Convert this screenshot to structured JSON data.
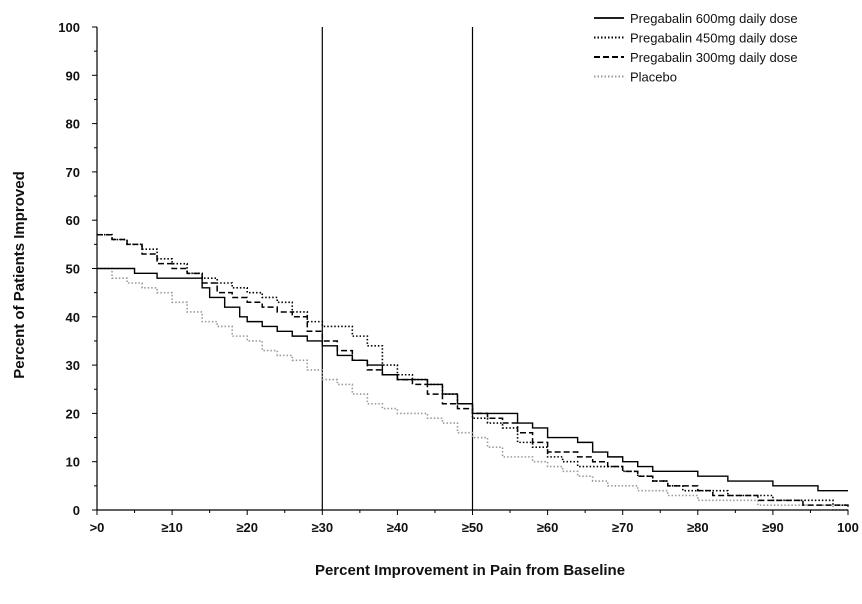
{
  "chart_data": {
    "type": "line",
    "title": "",
    "xlabel": "Percent Improvement in Pain from Baseline",
    "ylabel": "Percent of Patients Improved",
    "x_tick_labels": [
      ">0",
      "≥10",
      "≥20",
      "≥30",
      "≥40",
      "≥50",
      "≥60",
      "≥70",
      "≥80",
      "≥90",
      "100"
    ],
    "x_tick_values": [
      0,
      10,
      20,
      30,
      40,
      50,
      60,
      70,
      80,
      90,
      100
    ],
    "y_tick_labels": [
      "0",
      "10",
      "20",
      "30",
      "40",
      "50",
      "60",
      "70",
      "80",
      "90",
      "100"
    ],
    "y_tick_values": [
      0,
      10,
      20,
      30,
      40,
      50,
      60,
      70,
      80,
      90,
      100
    ],
    "xlim": [
      0,
      100
    ],
    "ylim": [
      0,
      100
    ],
    "grid": false,
    "reference_lines_x": [
      30,
      50
    ],
    "legend_position": "top-right",
    "series": [
      {
        "name": "Pregabalin 600mg daily dose",
        "line_style": "solid",
        "color": "#000000",
        "x": [
          0,
          2,
          5,
          8,
          10,
          12,
          14,
          15,
          17,
          19,
          20,
          22,
          24,
          26,
          28,
          30,
          32,
          34,
          36,
          38,
          40,
          42,
          44,
          46,
          48,
          50,
          52,
          54,
          56,
          58,
          60,
          62,
          64,
          66,
          68,
          70,
          72,
          74,
          76,
          78,
          80,
          82,
          84,
          86,
          88,
          90,
          92,
          94,
          96,
          98,
          100
        ],
        "y": [
          50,
          50,
          49,
          48,
          48,
          48,
          46,
          44,
          42,
          40,
          39,
          38,
          37,
          36,
          35,
          34,
          32,
          31,
          30,
          28,
          27,
          27,
          26,
          24,
          22,
          20,
          20,
          20,
          18,
          17,
          15,
          15,
          14,
          12,
          11,
          10,
          9,
          8,
          8,
          8,
          7,
          7,
          6,
          6,
          6,
          5,
          5,
          5,
          4,
          4,
          4
        ]
      },
      {
        "name": "Pregabalin 450mg daily dose",
        "line_style": "dotted",
        "color": "#000000",
        "x": [
          0,
          2,
          4,
          6,
          8,
          10,
          12,
          14,
          16,
          18,
          20,
          22,
          24,
          26,
          28,
          30,
          32,
          34,
          36,
          38,
          40,
          42,
          44,
          46,
          48,
          50,
          52,
          54,
          56,
          58,
          60,
          62,
          64,
          66,
          68,
          70,
          72,
          74,
          76,
          78,
          80,
          82,
          84,
          86,
          88,
          90,
          92,
          94,
          96,
          98,
          100
        ],
        "y": [
          57,
          56,
          55,
          54,
          52,
          51,
          49,
          48,
          47,
          46,
          45,
          44,
          43,
          41,
          39,
          38,
          38,
          36,
          34,
          30,
          28,
          27,
          26,
          24,
          22,
          19,
          18,
          17,
          14,
          13,
          11,
          10,
          9,
          9,
          9,
          8,
          7,
          6,
          5,
          4,
          4,
          4,
          3,
          3,
          3,
          2,
          2,
          2,
          2,
          1,
          1
        ]
      },
      {
        "name": "Pregabalin 300mg daily dose",
        "line_style": "dashed",
        "color": "#000000",
        "x": [
          0,
          2,
          4,
          6,
          8,
          10,
          12,
          14,
          16,
          18,
          20,
          22,
          24,
          26,
          28,
          30,
          32,
          34,
          36,
          38,
          40,
          42,
          44,
          46,
          48,
          50,
          52,
          54,
          56,
          58,
          60,
          62,
          64,
          66,
          68,
          70,
          72,
          74,
          76,
          78,
          80,
          82,
          84,
          86,
          88,
          90,
          92,
          94,
          96,
          98,
          100
        ],
        "y": [
          57,
          56,
          55,
          53,
          51,
          50,
          49,
          47,
          45,
          44,
          43,
          42,
          41,
          40,
          37,
          35,
          33,
          31,
          29,
          28,
          27,
          26,
          24,
          22,
          21,
          20,
          19,
          18,
          16,
          14,
          12,
          12,
          11,
          10,
          9,
          8,
          7,
          6,
          5,
          5,
          4,
          3,
          3,
          3,
          2,
          2,
          2,
          1,
          1,
          1,
          0
        ]
      },
      {
        "name": "Placebo",
        "line_style": "dotted-gray",
        "color": "#9a9a9a",
        "x": [
          0,
          2,
          4,
          6,
          8,
          10,
          12,
          14,
          16,
          18,
          20,
          22,
          24,
          26,
          28,
          30,
          32,
          34,
          36,
          38,
          40,
          42,
          44,
          46,
          48,
          50,
          52,
          54,
          56,
          58,
          60,
          62,
          64,
          66,
          68,
          70,
          72,
          74,
          76,
          78,
          80,
          82,
          84,
          86,
          88,
          90,
          92,
          94,
          96,
          98,
          100
        ],
        "y": [
          50,
          48,
          47,
          46,
          45,
          43,
          41,
          39,
          38,
          36,
          35,
          33,
          32,
          31,
          29,
          27,
          26,
          24,
          22,
          21,
          20,
          20,
          19,
          18,
          16,
          15,
          13,
          11,
          11,
          10,
          9,
          8,
          7,
          6,
          5,
          5,
          4,
          4,
          3,
          3,
          2,
          2,
          2,
          2,
          1,
          1,
          1,
          1,
          1,
          0,
          0
        ]
      }
    ]
  }
}
